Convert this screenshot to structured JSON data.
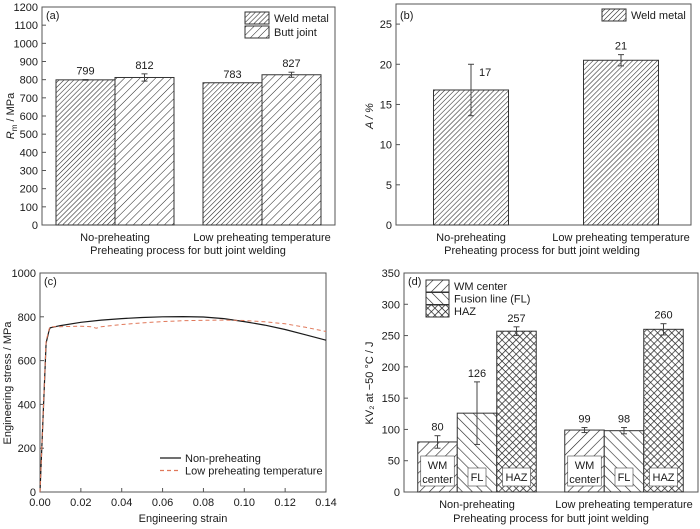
{
  "chart_data": [
    {
      "panel": "(a)",
      "type": "bar",
      "title": "",
      "xlabel": "Preheating process for butt joint welding",
      "ylabel_main": "R",
      "ylabel_sub": "m",
      "ylabel_rest": " / MPa",
      "ylim": [
        0,
        1200
      ],
      "yticks": [
        0,
        100,
        200,
        300,
        400,
        500,
        600,
        700,
        800,
        900,
        1000,
        1100,
        1200
      ],
      "categories": [
        "No-preheating",
        "Low preheating temperature"
      ],
      "legend_position": "top-right",
      "series": [
        {
          "name": "Weld metal",
          "pattern": "dense-diagonal",
          "values": [
            799,
            783
          ],
          "errors": [
            2,
            0
          ],
          "labels": [
            "799",
            "783"
          ]
        },
        {
          "name": "Butt joint",
          "pattern": "sparse-diagonal",
          "values": [
            812,
            827
          ],
          "errors": [
            20,
            14
          ],
          "labels": [
            "812",
            "827"
          ]
        }
      ]
    },
    {
      "panel": "(b)",
      "type": "bar",
      "title": "",
      "xlabel": "Preheating process for butt joint welding",
      "ylabel": "A / %",
      "ylim": [
        0,
        27.5
      ],
      "yticks": [
        0,
        5,
        10,
        15,
        20,
        25
      ],
      "categories": [
        "No-preheating",
        "Low preheating temperature"
      ],
      "legend_position": "top-right",
      "series": [
        {
          "name": "Weld metal",
          "pattern": "dense-diagonal",
          "values": [
            16.8,
            20.5
          ],
          "errors": [
            3.2,
            0.7
          ],
          "labels": [
            "17",
            "21"
          ]
        }
      ]
    },
    {
      "panel": "(c)",
      "type": "line",
      "title": "",
      "xlabel": "Engineering strain",
      "ylabel": "Engineering stress / MPa",
      "xlim": [
        0,
        0.14
      ],
      "ylim": [
        0,
        1000
      ],
      "xticks": [
        "0.00",
        "0.02",
        "0.04",
        "0.06",
        "0.08",
        "0.10",
        "0.12",
        "0.14"
      ],
      "yticks": [
        0,
        200,
        400,
        600,
        800,
        1000
      ],
      "legend_position": "bottom-right",
      "series": [
        {
          "name": "Non-preheating",
          "color": "#1a1a1a",
          "style": "solid",
          "x": [
            0,
            0.003,
            0.0045,
            0.005,
            0.01,
            0.02,
            0.03,
            0.04,
            0.05,
            0.06,
            0.07,
            0.08,
            0.09,
            0.1,
            0.11,
            0.12,
            0.13,
            0.14
          ],
          "y": [
            0,
            680,
            740,
            750,
            760,
            775,
            785,
            792,
            797,
            800,
            801,
            799,
            792,
            778,
            762,
            742,
            718,
            693
          ]
        },
        {
          "name": "Low preheating temperature",
          "color": "#e0785a",
          "style": "dashed",
          "x": [
            0,
            0.003,
            0.0045,
            0.005,
            0.01,
            0.02,
            0.025,
            0.0275,
            0.03,
            0.04,
            0.05,
            0.06,
            0.07,
            0.08,
            0.09,
            0.1,
            0.11,
            0.12,
            0.13,
            0.14
          ],
          "y": [
            0,
            690,
            745,
            755,
            755,
            757,
            755,
            748,
            755,
            765,
            772,
            778,
            782,
            784,
            785,
            783,
            777,
            768,
            752,
            733
          ]
        }
      ]
    },
    {
      "panel": "(d)",
      "type": "bar",
      "title": "",
      "xlabel": "Preheating process for butt joint welding",
      "ylabel": "KV₂ at −50 °C / J",
      "ylim": [
        0,
        350
      ],
      "yticks": [
        0,
        50,
        100,
        150,
        200,
        250,
        300,
        350
      ],
      "categories": [
        "Non-preheating",
        "Low preheating temperature"
      ],
      "legend_position": "top-left",
      "series": [
        {
          "name": "WM center",
          "short": [
            "WM",
            "center"
          ],
          "pattern": "wide-diagonal",
          "values": [
            80,
            99
          ],
          "errors": [
            10,
            4
          ],
          "labels": [
            "80",
            "99"
          ]
        },
        {
          "name": "Fusion line (FL)",
          "short": [
            "FL"
          ],
          "pattern": "wide-backdiagonal",
          "values": [
            126,
            98
          ],
          "errors": [
            50,
            5
          ],
          "labels": [
            "126",
            "98"
          ]
        },
        {
          "name": "HAZ",
          "short": [
            "HAZ"
          ],
          "pattern": "crosshatch",
          "values": [
            257,
            260
          ],
          "errors": [
            7,
            9
          ],
          "labels": [
            "257",
            "260"
          ]
        }
      ]
    }
  ]
}
